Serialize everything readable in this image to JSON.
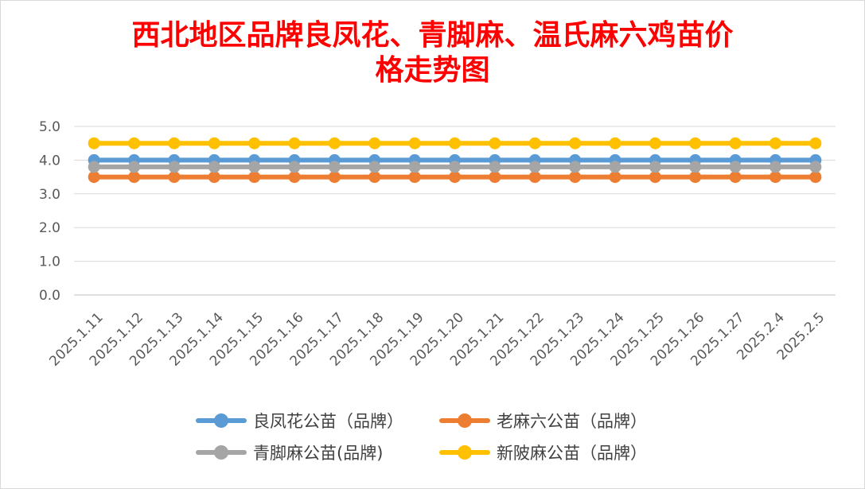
{
  "chart_data": {
    "type": "line",
    "title_lines": [
      "西北地区品牌良凤花、青脚麻、温氏麻六鸡苗价",
      "格走势图"
    ],
    "categories": [
      "2025.1.11",
      "2025.1.12",
      "2025.1.13",
      "2025.1.14",
      "2025.1.15",
      "2025.1.16",
      "2025.1.17",
      "2025.1.18",
      "2025.1.19",
      "2025.1.20",
      "2025.1.21",
      "2025.1.22",
      "2025.1.23",
      "2025.1.24",
      "2025.1.25",
      "2025.1.26",
      "2025.1.27",
      "2025.2.4",
      "2025.2.5"
    ],
    "ylim": [
      0,
      5
    ],
    "yticks": [
      "0.0",
      "1.0",
      "2.0",
      "3.0",
      "4.0",
      "5.0"
    ],
    "grid": true,
    "legend_position": "bottom",
    "series": [
      {
        "name": "良凤花公苗（品牌）",
        "color": "#5b9bd5",
        "values": [
          4,
          4,
          4,
          4,
          4,
          4,
          4,
          4,
          4,
          4,
          4,
          4,
          4,
          4,
          4,
          4,
          4,
          4,
          4
        ]
      },
      {
        "name": "老麻六公苗（品牌）",
        "color": "#ed7d31",
        "values": [
          3.5,
          3.5,
          3.5,
          3.5,
          3.5,
          3.5,
          3.5,
          3.5,
          3.5,
          3.5,
          3.5,
          3.5,
          3.5,
          3.5,
          3.5,
          3.5,
          3.5,
          3.5,
          3.5
        ]
      },
      {
        "name": "青脚麻公苗(品牌)",
        "color": "#a5a5a5",
        "values": [
          3.8,
          3.8,
          3.8,
          3.8,
          3.8,
          3.8,
          3.8,
          3.8,
          3.8,
          3.8,
          3.8,
          3.8,
          3.8,
          3.8,
          3.8,
          3.8,
          3.8,
          3.8,
          3.8
        ]
      },
      {
        "name": "新陂麻公苗（品牌）",
        "color": "#ffc000",
        "values": [
          4.5,
          4.5,
          4.5,
          4.5,
          4.5,
          4.5,
          4.5,
          4.5,
          4.5,
          4.5,
          4.5,
          4.5,
          4.5,
          4.5,
          4.5,
          4.5,
          4.5,
          4.5,
          4.5
        ]
      }
    ]
  }
}
